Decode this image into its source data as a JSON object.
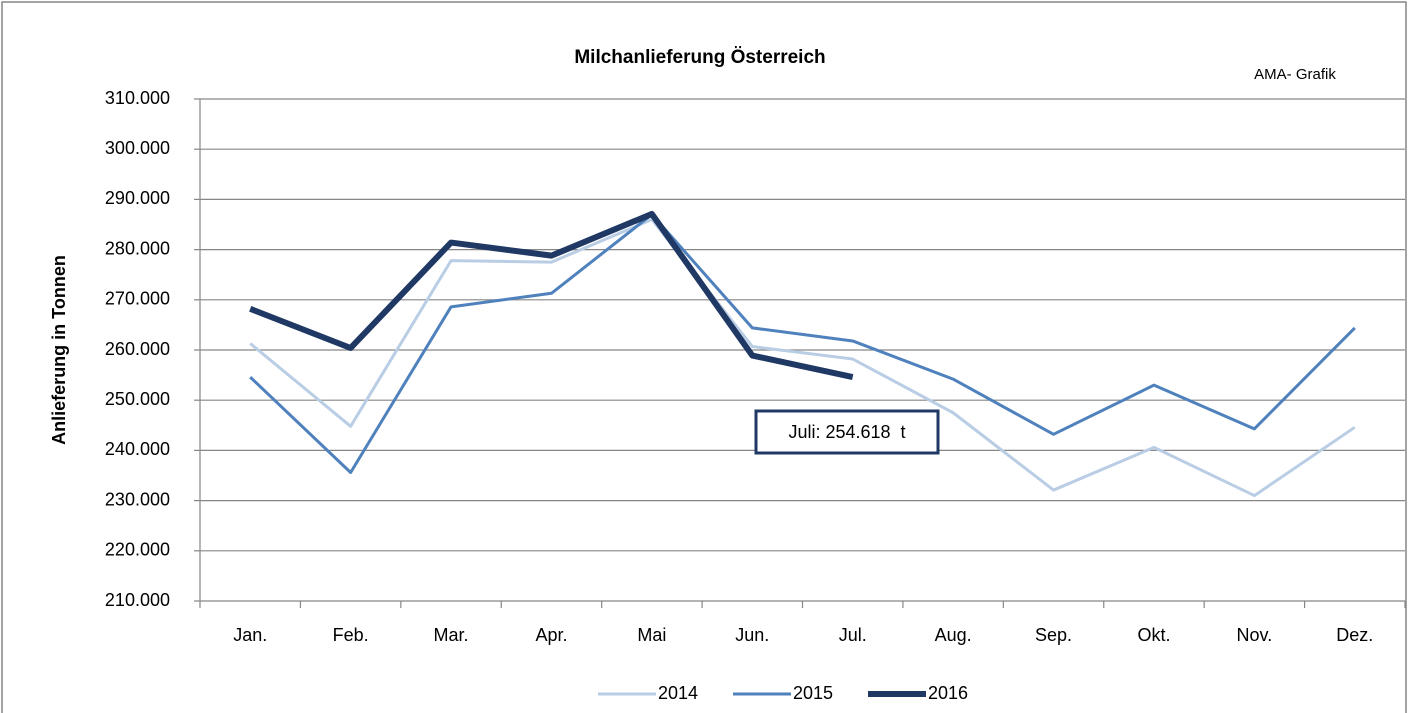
{
  "chart_data": {
    "type": "line",
    "title": "Milchanlieferung Österreich",
    "source_note": "AMA- Grafik",
    "y_label": "Anlieferung in Tonnen",
    "categories": [
      "Jan.",
      "Feb.",
      "Mar.",
      "Apr.",
      "Mai",
      "Jun.",
      "Jul.",
      "Aug.",
      "Sep.",
      "Okt.",
      "Nov.",
      "Dez."
    ],
    "series": [
      {
        "name": "2014",
        "color": "#b9cde5",
        "width": 3,
        "values": [
          261300,
          244800,
          277800,
          277500,
          286000,
          260700,
          258200,
          247500,
          232100,
          240600,
          231000,
          244600
        ]
      },
      {
        "name": "2015",
        "color": "#4f81bd",
        "width": 3,
        "values": [
          254600,
          235600,
          268600,
          271300,
          287000,
          264400,
          261800,
          254200,
          243200,
          253000,
          244300,
          264400
        ]
      },
      {
        "name": "2016",
        "color": "#1f3864",
        "width": 6,
        "values": [
          268200,
          260400,
          281400,
          278800,
          287100,
          258900,
          254618,
          null,
          null,
          null,
          null,
          null
        ]
      }
    ],
    "annotation": {
      "text": "Juli: 254.618  t",
      "value": 254618
    },
    "ylim": [
      210000,
      310000
    ],
    "yticks": [
      {
        "value": 210000,
        "label": "210.000"
      },
      {
        "value": 220000,
        "label": "220.000"
      },
      {
        "value": 230000,
        "label": "230.000"
      },
      {
        "value": 240000,
        "label": "240.000"
      },
      {
        "value": 250000,
        "label": "250.000"
      },
      {
        "value": 260000,
        "label": "260.000"
      },
      {
        "value": 270000,
        "label": "270.000"
      },
      {
        "value": 280000,
        "label": "280.000"
      },
      {
        "value": 290000,
        "label": "290.000"
      },
      {
        "value": 300000,
        "label": "300.000"
      },
      {
        "value": 310000,
        "label": "310.000"
      }
    ],
    "grid": true,
    "legend": "bottom"
  }
}
